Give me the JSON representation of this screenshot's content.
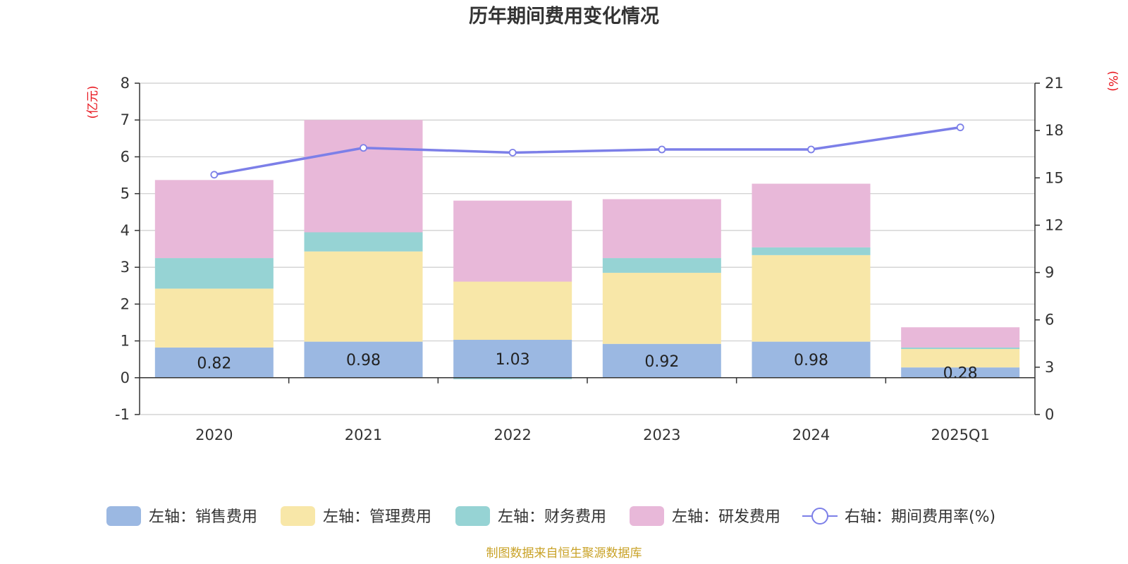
{
  "chart_data": {
    "type": "bar",
    "stacked": true,
    "title": "历年期间费用变化情况",
    "categories": [
      "2020",
      "2021",
      "2022",
      "2023",
      "2024",
      "2025Q1"
    ],
    "left_axis": {
      "unit": "(亿元)",
      "min": -1,
      "max": 8,
      "ticks": [
        "8",
        "7",
        "6",
        "5",
        "4",
        "3",
        "2",
        "1",
        "0",
        "-1"
      ]
    },
    "right_axis": {
      "unit": "(%)",
      "min": 0,
      "max": 21,
      "ticks": [
        "21",
        "18",
        "15",
        "12",
        "9",
        "6",
        "3",
        "0"
      ]
    },
    "series": [
      {
        "name": "左轴：销售费用",
        "axis": "left",
        "color": "#9bb8e2",
        "values": [
          0.82,
          0.98,
          1.03,
          0.92,
          0.98,
          0.28
        ],
        "labels": [
          "0.82",
          "0.98",
          "1.03",
          "0.92",
          "0.98",
          "0.28"
        ]
      },
      {
        "name": "左轴：管理费用",
        "axis": "left",
        "color": "#f8e7a8",
        "values": [
          1.6,
          2.45,
          1.58,
          1.93,
          2.35,
          0.5
        ]
      },
      {
        "name": "左轴：财务费用",
        "axis": "left",
        "color": "#96d3d4",
        "values": [
          0.83,
          0.52,
          -0.04,
          0.4,
          0.21,
          0.04
        ]
      },
      {
        "name": "左轴：研发费用",
        "axis": "left",
        "color": "#e8b8d9",
        "values": [
          2.12,
          3.05,
          2.2,
          1.6,
          1.73,
          0.55
        ]
      },
      {
        "name": "右轴：期间费用率(%)",
        "axis": "right",
        "type": "line",
        "color": "#7c7fe8",
        "values": [
          15.2,
          16.9,
          16.6,
          16.8,
          16.8,
          18.2
        ]
      }
    ]
  },
  "source": "制图数据来自恒生聚源数据库"
}
